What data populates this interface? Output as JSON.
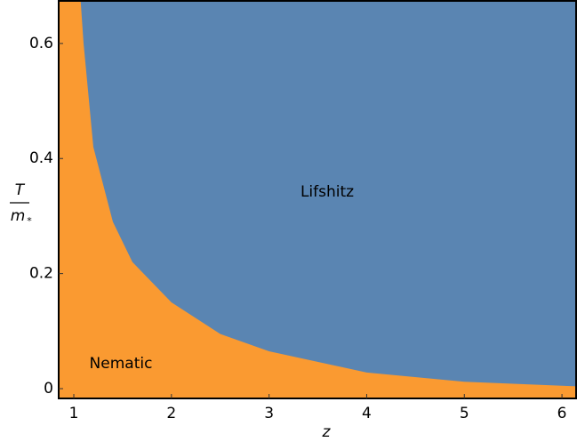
{
  "chart_data": {
    "type": "area",
    "xlabel": "z",
    "ylabel": {
      "numerator": "T",
      "denominator": "m",
      "subscript": "*"
    },
    "x": [
      1.07,
      1.1,
      1.2,
      1.4,
      1.6,
      2,
      2.5,
      3,
      4,
      5,
      6,
      6.145
    ],
    "values": [
      0.674,
      0.6,
      0.42,
      0.29,
      0.22,
      0.15,
      0.095,
      0.065,
      0.028,
      0.012,
      0.005,
      0.004
    ],
    "regions": [
      {
        "name": "Nematic",
        "color": "#fa9a31"
      },
      {
        "name": "Lifshitz",
        "color": "#5a85b2"
      }
    ],
    "xlim": [
      0.845,
      6.145
    ],
    "ylim": [
      -0.017,
      0.674
    ],
    "xticks": [
      1,
      2,
      3,
      4,
      5,
      6
    ],
    "yticks": [
      0,
      0.2,
      0.4,
      0.6
    ]
  }
}
